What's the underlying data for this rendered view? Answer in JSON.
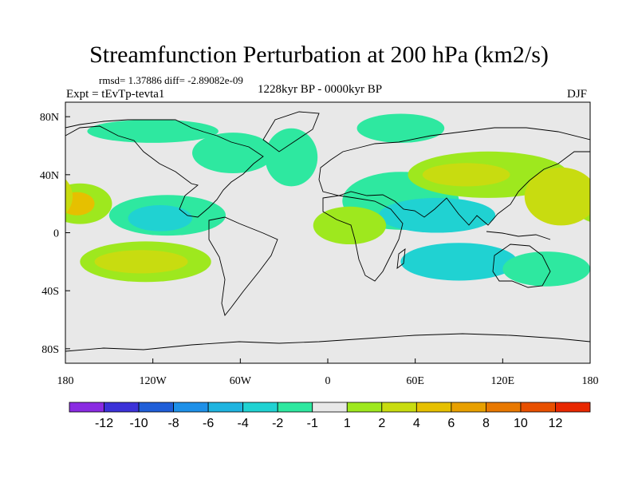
{
  "header": {
    "title": "Streamfunction Perturbation at 200 hPa (km2/s)",
    "stats": "rmsd= 1.37886 diff= -2.89082e-09",
    "experiment": "Expt = tEvTp-tevta1",
    "period": "1228kyr BP - 0000kyr BP",
    "season": "DJF"
  },
  "chart_data": {
    "type": "filled-contour-map",
    "title": "Streamfunction Perturbation at 200 hPa (km2/s)",
    "units": "km2/s",
    "projection": "cylindrical-equidistant",
    "xlim": [
      -180,
      180
    ],
    "ylim": [
      -90,
      90
    ],
    "x_ticks": [
      {
        "value": -180,
        "label": "180"
      },
      {
        "value": -120,
        "label": "120W"
      },
      {
        "value": -60,
        "label": "60W"
      },
      {
        "value": 0,
        "label": "0"
      },
      {
        "value": 60,
        "label": "60E"
      },
      {
        "value": 120,
        "label": "120E"
      },
      {
        "value": 180,
        "label": "180"
      }
    ],
    "y_ticks": [
      {
        "value": 80,
        "label": "80N"
      },
      {
        "value": 40,
        "label": "40N"
      },
      {
        "value": 0,
        "label": "0"
      },
      {
        "value": -40,
        "label": "40S"
      },
      {
        "value": -80,
        "label": "80S"
      }
    ],
    "colorbar": {
      "colors": [
        "#8a2be2",
        "#3c32d8",
        "#1f5ed8",
        "#1e90e8",
        "#1fb4e0",
        "#20d2d2",
        "#2ee8a0",
        "#e8e8e8",
        "#9ee81e",
        "#c8dc10",
        "#e6c000",
        "#e8a000",
        "#e87800",
        "#e85000",
        "#e82800"
      ],
      "labels": [
        "-12",
        "-10",
        "-8",
        "-6",
        "-4",
        "-2",
        "-1",
        "1",
        "2",
        "4",
        "6",
        "8",
        "10",
        "12"
      ]
    },
    "features": [
      {
        "name": "north-pacific-east-positive",
        "cx": -170,
        "cy": 20,
        "rx": 22,
        "ry": 14,
        "level": 2
      },
      {
        "name": "north-pacific-east-positive-core",
        "cx": -172,
        "cy": 20,
        "rx": 12,
        "ry": 8,
        "level": 6
      },
      {
        "name": "arctic-pacific-negative",
        "cx": -120,
        "cy": 70,
        "rx": 45,
        "ry": 8,
        "level": -1
      },
      {
        "name": "north-america-negative",
        "cx": -65,
        "cy": 55,
        "rx": 28,
        "ry": 14,
        "level": -1
      },
      {
        "name": "atlantic-negative",
        "cx": -25,
        "cy": 52,
        "rx": 18,
        "ry": 20,
        "level": -1
      },
      {
        "name": "caribbean-negative",
        "cx": -110,
        "cy": 12,
        "rx": 40,
        "ry": 14,
        "level": -1
      },
      {
        "name": "caribbean-negative-core",
        "cx": -115,
        "cy": 10,
        "rx": 22,
        "ry": 9,
        "level": -2
      },
      {
        "name": "south-pacific-positive",
        "cx": -125,
        "cy": -20,
        "rx": 45,
        "ry": 14,
        "level": 2
      },
      {
        "name": "south-pacific-positive-core",
        "cx": -128,
        "cy": -20,
        "rx": 32,
        "ry": 8,
        "level": 4
      },
      {
        "name": "siberia-negative",
        "cx": 50,
        "cy": 72,
        "rx": 30,
        "ry": 10,
        "level": -1
      },
      {
        "name": "europe-negative",
        "cx": 50,
        "cy": 22,
        "rx": 40,
        "ry": 20,
        "level": -1
      },
      {
        "name": "africa-negative",
        "cx": 75,
        "cy": 12,
        "rx": 40,
        "ry": 12,
        "level": -2
      },
      {
        "name": "atlantic-south-positive",
        "cx": 15,
        "cy": 5,
        "rx": 25,
        "ry": 13,
        "level": 2
      },
      {
        "name": "indian-ocean-negative",
        "cx": 90,
        "cy": -20,
        "rx": 40,
        "ry": 13,
        "level": -2
      },
      {
        "name": "asia-positive",
        "cx": 110,
        "cy": 40,
        "rx": 55,
        "ry": 16,
        "level": 2
      },
      {
        "name": "asia-positive-core",
        "cx": 95,
        "cy": 40,
        "rx": 30,
        "ry": 8,
        "level": 4
      },
      {
        "name": "west-pacific-positive",
        "cx": 160,
        "cy": 25,
        "rx": 25,
        "ry": 20,
        "level": 4
      },
      {
        "name": "east-asia-negative",
        "cx": 150,
        "cy": -25,
        "rx": 30,
        "ry": 12,
        "level": -1
      }
    ]
  }
}
